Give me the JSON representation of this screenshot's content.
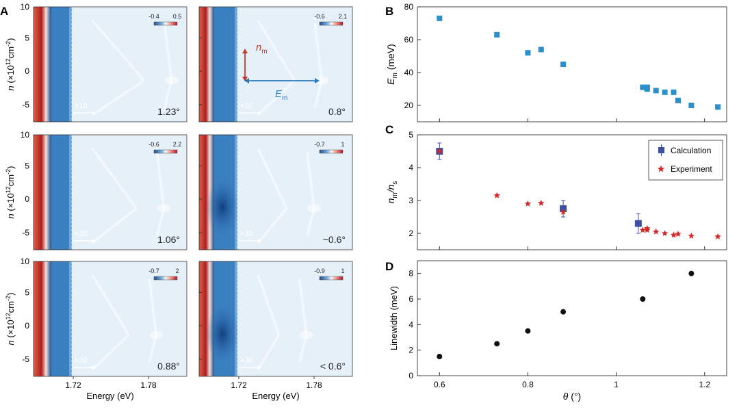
{
  "figure": {
    "panel_letters": {
      "A": "A",
      "B": "B",
      "C": "C",
      "D": "D"
    },
    "ylabel_parts": {
      "n": "n",
      "open": "  (×10",
      "exp": "12",
      "unit": "cm",
      "unit_exp": "-2",
      "close": ")"
    },
    "energy_label": "Energy (eV)",
    "energy_ticks": [
      "1.72",
      "1.78"
    ],
    "density_ticks": [
      "10",
      "5",
      "0",
      "-5"
    ],
    "colors": {
      "accent_red": "#c0392b",
      "accent_blue": "#2a7bbf",
      "marker_b": "#2b8fc9",
      "calc": "#3d4fa0",
      "exp": "#d62728",
      "dots": "#111111"
    }
  },
  "spectra": [
    {
      "angle": "1.23°",
      "mult": "×10",
      "cmin": "-0.4",
      "cmax": "0.5",
      "peak": 0.9,
      "dark": false
    },
    {
      "angle": "0.8°",
      "mult": "×20",
      "cmin": "-0.6",
      "cmax": "2.1",
      "peak": 0.8,
      "dark": false
    },
    {
      "angle": "1.06°",
      "mult": "×20",
      "cmin": "-0.6",
      "cmax": "2.2",
      "peak": 0.85,
      "dark": false
    },
    {
      "angle": "~0.6°",
      "mult": "×30",
      "cmin": "-0.7",
      "cmax": "1",
      "peak": 0.75,
      "dark": true
    },
    {
      "angle": "0.88°",
      "mult": "×20",
      "cmin": "-0.7",
      "cmax": "2",
      "peak": 0.8,
      "dark": false
    },
    {
      "angle": "< 0.6°",
      "mult": "×30",
      "cmin": "-0.9",
      "cmax": "1",
      "peak": 0.7,
      "dark": true
    }
  ],
  "annotations": {
    "n_m": "n",
    "n_m_sub": "m",
    "E_m": "E",
    "E_m_sub": "m"
  },
  "chart_data": [
    {
      "id": "B",
      "type": "scatter",
      "ylabel": "E_m (meV)",
      "ylabel_main": "E",
      "ylabel_sub": "m",
      "ylabel_unit": " (meV)",
      "ylim": [
        10,
        80
      ],
      "yticks": [
        "20",
        "40",
        "60",
        "80"
      ],
      "x": [
        0.6,
        0.73,
        0.8,
        0.83,
        0.88,
        1.06,
        1.07,
        1.07,
        1.09,
        1.11,
        1.13,
        1.14,
        1.17,
        1.23
      ],
      "y": [
        73,
        63,
        52,
        54,
        45,
        31,
        31,
        30,
        29,
        28,
        28,
        23,
        20,
        19
      ]
    },
    {
      "id": "C",
      "type": "scatter",
      "ylabel_main": "n",
      "ylabel_sub": "m",
      "ylabel_slash": "/n",
      "ylabel_sub2": "s",
      "ylim": [
        1.5,
        5
      ],
      "yticks": [
        "2",
        "3",
        "4",
        "5"
      ],
      "legend": [
        "Calculation",
        "Experiment"
      ],
      "series": [
        {
          "name": "Calculation",
          "x": [
            0.6,
            0.88,
            1.05
          ],
          "y": [
            4.5,
            2.75,
            2.3
          ],
          "err": [
            0.25,
            0.25,
            0.3
          ]
        },
        {
          "name": "Experiment",
          "x": [
            0.6,
            0.73,
            0.8,
            0.83,
            0.88,
            1.06,
            1.07,
            1.07,
            1.09,
            1.11,
            1.13,
            1.14,
            1.17,
            1.23
          ],
          "y": [
            4.5,
            3.15,
            2.9,
            2.92,
            2.65,
            2.1,
            2.1,
            2.15,
            2.05,
            2.0,
            1.95,
            1.98,
            1.92,
            1.9
          ]
        }
      ]
    },
    {
      "id": "D",
      "type": "scatter",
      "ylabel": "Linewidth (meV)",
      "ylim": [
        0,
        9
      ],
      "yticks": [
        "0",
        "2",
        "4",
        "6",
        "8"
      ],
      "x": [
        0.6,
        0.73,
        0.8,
        0.88,
        1.06,
        1.17
      ],
      "y": [
        1.5,
        2.5,
        3.5,
        5,
        6,
        8
      ]
    }
  ],
  "x_axis": {
    "xlim": [
      0.55,
      1.25
    ],
    "ticks": [
      "0.6",
      "0.8",
      "1",
      "1.2"
    ],
    "label_main": "θ",
    "label_unit": " (°)"
  }
}
